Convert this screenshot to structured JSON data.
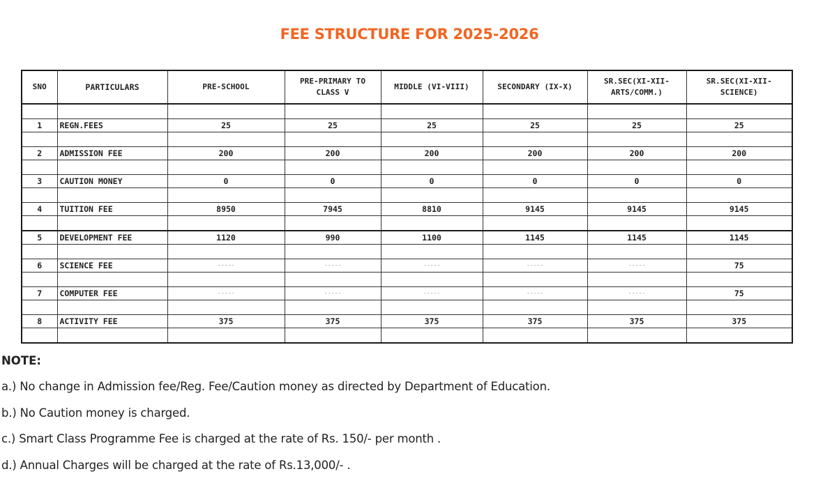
{
  "title": "FEE STRUCTURE FOR 2025-2026",
  "table": {
    "headers": {
      "sno": "SNO",
      "particulars": "PARTICULARS",
      "pre_school": "PRE-SCHOOL",
      "pre_primary_line1": "PRE-PRIMARY TO",
      "pre_primary_line2": "CLASS V",
      "middle": "MIDDLE (VI-VIII)",
      "secondary": "SECONDARY (IX-X)",
      "sr_arts_line1": "SR.SEC(XI-XII-",
      "sr_arts_line2": "ARTS/COMM.)",
      "sr_science_line1": "SR.SEC(XI-XII-",
      "sr_science_line2": "SCIENCE)"
    },
    "rows": [
      {
        "sno": "1",
        "particular": "REGN.FEES",
        "values": [
          "25",
          "25",
          "25",
          "25",
          "25",
          "25"
        ]
      },
      {
        "sno": "2",
        "particular": "ADMISSION FEE",
        "values": [
          "200",
          "200",
          "200",
          "200",
          "200",
          "200"
        ]
      },
      {
        "sno": "3",
        "particular": "CAUTION MONEY",
        "values": [
          "0",
          "0",
          "0",
          "0",
          "0",
          "0"
        ]
      },
      {
        "sno": "4",
        "particular": "TUITION FEE",
        "values": [
          "8950",
          "7945",
          "8810",
          "9145",
          "9145",
          "9145"
        ]
      },
      {
        "sno": "5",
        "particular": "DEVELOPMENT FEE",
        "values": [
          "1120",
          "990",
          "1100",
          "1145",
          "1145",
          "1145"
        ]
      },
      {
        "sno": "6",
        "particular": "SCIENCE FEE",
        "values": [
          "-----",
          "-----",
          "-----",
          "-----",
          "-----",
          "75"
        ]
      },
      {
        "sno": "7",
        "particular": "COMPUTER FEE",
        "values": [
          "-----",
          "-----",
          "-----",
          "-----",
          "-----",
          "75"
        ]
      },
      {
        "sno": "8",
        "particular": "ACTIVITY FEE",
        "values": [
          "375",
          "375",
          "375",
          "375",
          "375",
          "375"
        ]
      }
    ]
  },
  "notes": {
    "heading": "NOTE:",
    "items": [
      "a.) No change in Admission fee/Reg. Fee/Caution money as directed by Department of Education.",
      "b.) No Caution money is charged.",
      "c.) Smart Class Programme Fee is charged at the rate of Rs. 150/- per month .",
      "d.) Annual Charges will be charged at the rate of Rs.13,000/- ."
    ]
  },
  "colors": {
    "title": "#f26522",
    "text": "#222222",
    "border": "#1a1a1a"
  }
}
